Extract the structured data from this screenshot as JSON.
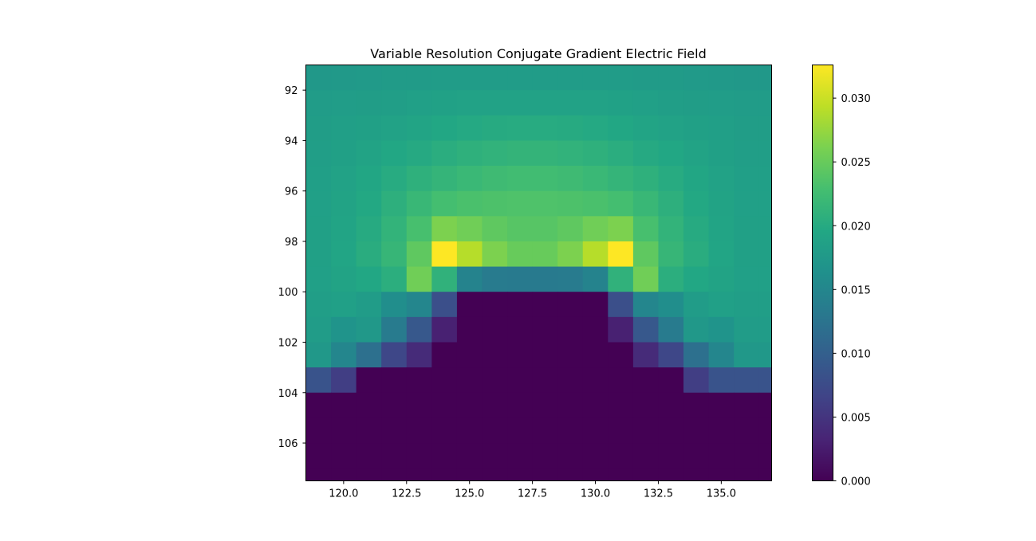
{
  "chart_data": {
    "type": "heatmap",
    "title": "Variable Resolution Conjugate Gradient Electric Field",
    "xlabel": "",
    "ylabel": "",
    "x_range": [
      118.5,
      137.0
    ],
    "y_range": [
      107.5,
      91.0
    ],
    "cell_size": [
      1.0,
      1.0
    ],
    "x_start": 118.5,
    "y_start": 91.0,
    "x_ticks": [
      "120.0",
      "122.5",
      "125.0",
      "127.5",
      "130.0",
      "132.5",
      "135.0"
    ],
    "x_tick_values": [
      120.0,
      122.5,
      125.0,
      127.5,
      130.0,
      132.5,
      135.0
    ],
    "y_ticks": [
      "92",
      "94",
      "96",
      "98",
      "100",
      "102",
      "104",
      "106"
    ],
    "y_tick_values": [
      92,
      94,
      96,
      98,
      100,
      102,
      104,
      106
    ],
    "colormap": "viridis",
    "color_range": [
      0.0,
      0.0326
    ],
    "colorbar_ticks": [
      "0.000",
      "0.005",
      "0.010",
      "0.015",
      "0.020",
      "0.025",
      "0.030"
    ],
    "colorbar_tick_values": [
      0.0,
      0.005,
      0.01,
      0.015,
      0.02,
      0.025,
      0.03
    ],
    "values": [
      [
        0.0175,
        0.0176,
        0.0177,
        0.0178,
        0.0179,
        0.018,
        0.018,
        0.018,
        0.018,
        0.018,
        0.018,
        0.018,
        0.018,
        0.0179,
        0.0178,
        0.0177,
        0.0176,
        0.0175,
        0.0175
      ],
      [
        0.018,
        0.0181,
        0.0182,
        0.0183,
        0.0185,
        0.0187,
        0.0188,
        0.0189,
        0.0189,
        0.0189,
        0.0189,
        0.0188,
        0.0187,
        0.0185,
        0.0183,
        0.0182,
        0.0181,
        0.018,
        0.018
      ],
      [
        0.0182,
        0.0184,
        0.0186,
        0.0189,
        0.0192,
        0.0196,
        0.0198,
        0.02,
        0.0201,
        0.0201,
        0.02,
        0.0198,
        0.0196,
        0.0192,
        0.0189,
        0.0186,
        0.0184,
        0.0182,
        0.0182
      ],
      [
        0.0183,
        0.0186,
        0.019,
        0.0195,
        0.0199,
        0.0204,
        0.0208,
        0.0211,
        0.0213,
        0.0213,
        0.0211,
        0.0208,
        0.0204,
        0.0199,
        0.0195,
        0.019,
        0.0186,
        0.0183,
        0.0183
      ],
      [
        0.0184,
        0.0188,
        0.0194,
        0.0201,
        0.0208,
        0.0214,
        0.0219,
        0.0223,
        0.0225,
        0.0225,
        0.0223,
        0.0219,
        0.0214,
        0.0208,
        0.0201,
        0.0194,
        0.0188,
        0.0184,
        0.0184
      ],
      [
        0.0185,
        0.019,
        0.0197,
        0.0207,
        0.0218,
        0.0228,
        0.0232,
        0.0234,
        0.0235,
        0.0235,
        0.0234,
        0.0232,
        0.0228,
        0.0218,
        0.0207,
        0.0197,
        0.019,
        0.0185,
        0.0185
      ],
      [
        0.0186,
        0.0192,
        0.02,
        0.0212,
        0.023,
        0.0262,
        0.0255,
        0.0245,
        0.024,
        0.024,
        0.0245,
        0.0255,
        0.0262,
        0.023,
        0.0212,
        0.02,
        0.0192,
        0.0186,
        0.0186
      ],
      [
        0.0186,
        0.0193,
        0.0203,
        0.0216,
        0.0245,
        0.0326,
        0.029,
        0.0262,
        0.025,
        0.025,
        0.0262,
        0.029,
        0.0326,
        0.0245,
        0.0216,
        0.0203,
        0.0193,
        0.0186,
        0.0186
      ],
      [
        0.0185,
        0.019,
        0.0196,
        0.0205,
        0.0255,
        0.021,
        0.0145,
        0.0135,
        0.0133,
        0.0133,
        0.0135,
        0.0145,
        0.021,
        0.0255,
        0.0205,
        0.0196,
        0.019,
        0.0185,
        0.0185
      ],
      [
        0.0183,
        0.0185,
        0.018,
        0.016,
        0.015,
        0.008,
        0.0,
        0.0,
        0.0,
        0.0,
        0.0,
        0.0,
        0.008,
        0.015,
        0.016,
        0.018,
        0.0185,
        0.0183,
        0.0183
      ],
      [
        0.018,
        0.0168,
        0.0175,
        0.0135,
        0.009,
        0.003,
        0.0,
        0.0,
        0.0,
        0.0,
        0.0,
        0.0,
        0.003,
        0.009,
        0.0135,
        0.0175,
        0.0168,
        0.018,
        0.018
      ],
      [
        0.0175,
        0.015,
        0.012,
        0.007,
        0.004,
        0.0,
        0.0,
        0.0,
        0.0,
        0.0,
        0.0,
        0.0,
        0.0,
        0.004,
        0.007,
        0.012,
        0.015,
        0.0175,
        0.0175
      ],
      [
        0.0085,
        0.006,
        0.0,
        0.0,
        0.0,
        0.0,
        0.0,
        0.0,
        0.0,
        0.0,
        0.0,
        0.0,
        0.0,
        0.0,
        0.0,
        0.006,
        0.0085,
        0.0085,
        0.0085
      ],
      [
        0.0,
        0.0,
        0.0,
        0.0,
        0.0,
        0.0,
        0.0,
        0.0,
        0.0,
        0.0,
        0.0,
        0.0,
        0.0,
        0.0,
        0.0,
        0.0,
        0.0,
        0.0,
        0.0
      ],
      [
        0.0,
        0.0,
        0.0,
        0.0,
        0.0,
        0.0,
        0.0,
        0.0,
        0.0,
        0.0,
        0.0,
        0.0,
        0.0,
        0.0,
        0.0,
        0.0,
        0.0,
        0.0,
        0.0
      ],
      [
        0.0,
        0.0,
        0.0,
        0.0,
        0.0,
        0.0,
        0.0,
        0.0,
        0.0,
        0.0,
        0.0,
        0.0,
        0.0,
        0.0,
        0.0,
        0.0,
        0.0,
        0.0,
        0.0
      ],
      [
        0.0,
        0.0,
        0.0,
        0.0,
        0.0,
        0.0,
        0.0,
        0.0,
        0.0,
        0.0,
        0.0,
        0.0,
        0.0,
        0.0,
        0.0,
        0.0,
        0.0,
        0.0,
        0.0
      ]
    ],
    "grid": false,
    "colorbar_position": "right"
  }
}
